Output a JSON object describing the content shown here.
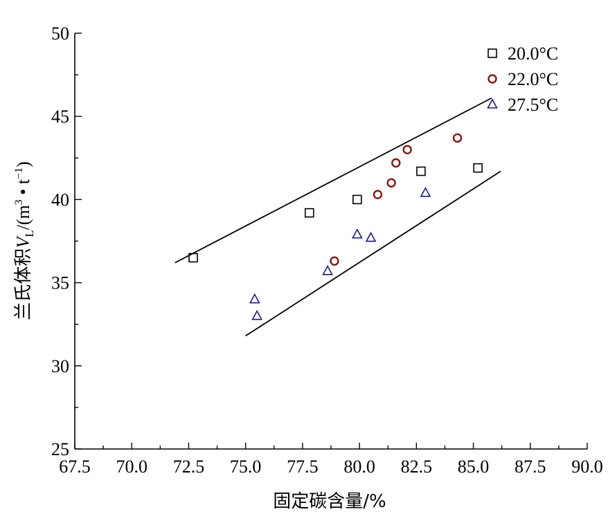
{
  "chart_data": {
    "type": "scatter",
    "xlabel": "固定碳含量/%",
    "ylabel_parts": {
      "prefix": "兰氏体积",
      "var": "V",
      "sub": "L",
      "unit_open": "/(m",
      "unit_sup1": "3",
      "unit_mid": " • t",
      "unit_sup2": "−1",
      "unit_close": ")"
    },
    "xlim": [
      67.5,
      90.0
    ],
    "ylim": [
      25,
      50
    ],
    "xticks": [
      "67.5",
      "70.0",
      "72.5",
      "75.0",
      "77.5",
      "80.0",
      "82.5",
      "85.0",
      "87.5",
      "90.0"
    ],
    "yticks": [
      "25",
      "30",
      "35",
      "40",
      "45",
      "50"
    ],
    "legend_position": "top-right",
    "series": [
      {
        "name": "20.0°C",
        "marker": "square",
        "color": "#000000",
        "points": [
          [
            72.7,
            36.5
          ],
          [
            77.8,
            39.2
          ],
          [
            79.9,
            40.0
          ],
          [
            82.7,
            41.7
          ],
          [
            85.2,
            41.9
          ]
        ]
      },
      {
        "name": "22.0°C",
        "marker": "circle",
        "color": "#7a1a1a",
        "points": [
          [
            78.9,
            36.3
          ],
          [
            80.8,
            40.3
          ],
          [
            81.4,
            41.0
          ],
          [
            81.6,
            42.2
          ],
          [
            82.1,
            43.0
          ],
          [
            84.3,
            43.7
          ]
        ]
      },
      {
        "name": "27.5°C",
        "marker": "triangle",
        "color": "#1a1a7a",
        "points": [
          [
            75.4,
            34.0
          ],
          [
            75.5,
            33.0
          ],
          [
            78.6,
            35.7
          ],
          [
            79.9,
            37.9
          ],
          [
            80.5,
            37.7
          ],
          [
            82.9,
            40.4
          ]
        ]
      }
    ],
    "lines": [
      {
        "x": [
          71.9,
          85.8
        ],
        "y": [
          36.2,
          46.1
        ]
      },
      {
        "x": [
          75.0,
          86.2
        ],
        "y": [
          31.8,
          41.7
        ]
      }
    ]
  }
}
